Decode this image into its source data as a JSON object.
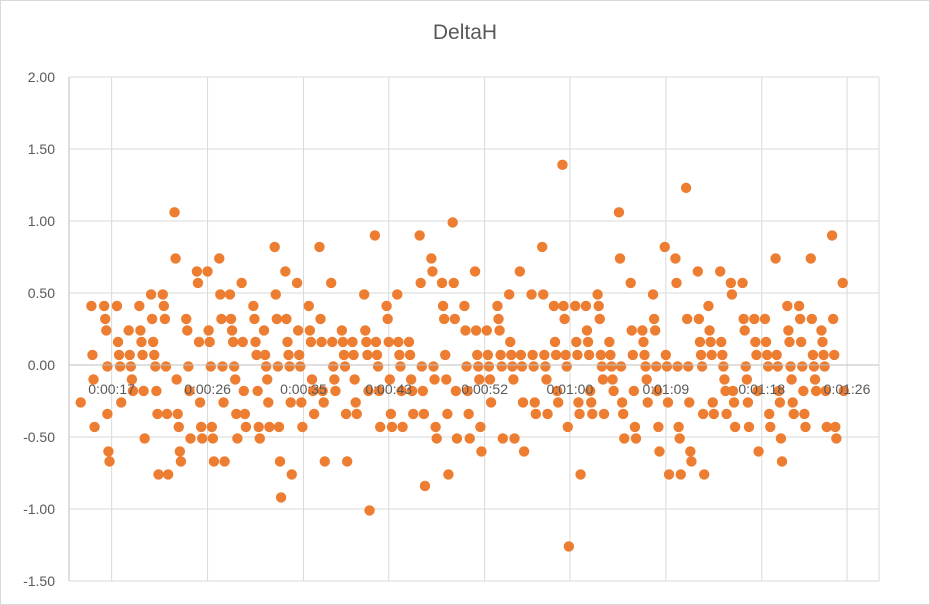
{
  "chart_data": {
    "type": "scatter",
    "title": "DeltaH",
    "xlabel": "",
    "ylabel": "",
    "xlim": [
      13,
      89
    ],
    "ylim": [
      -1.5,
      2.0
    ],
    "y_ticks": [
      "2.00",
      "1.50",
      "1.00",
      "0.50",
      "0.00",
      "-0.50",
      "-1.00",
      "-1.50"
    ],
    "x_ticks": [
      "0:00:17",
      "0:00:26",
      "0:00:35",
      "0:00:43",
      "0:00:52",
      "0:01:00",
      "0:01:09",
      "0:01:18",
      "0:01:26"
    ],
    "x_tick_values": [
      17,
      26,
      35,
      43,
      52,
      60,
      69,
      78,
      86
    ],
    "grid": true,
    "legend": "none",
    "marker_color": "#ED7D31",
    "points": [
      [
        14.1,
        -0.26
      ],
      [
        15.1,
        0.41
      ],
      [
        15.2,
        0.07
      ],
      [
        15.3,
        -0.1
      ],
      [
        15.4,
        -0.43
      ],
      [
        16.3,
        0.41
      ],
      [
        16.4,
        0.32
      ],
      [
        16.5,
        0.24
      ],
      [
        16.6,
        -0.34
      ],
      [
        16.7,
        -0.6
      ],
      [
        16.8,
        -0.67
      ],
      [
        16.6,
        -0.01
      ],
      [
        17.5,
        0.41
      ],
      [
        17.6,
        0.16
      ],
      [
        17.7,
        0.07
      ],
      [
        17.8,
        -0.01
      ],
      [
        17.9,
        -0.26
      ],
      [
        18.6,
        0.24
      ],
      [
        18.7,
        0.07
      ],
      [
        18.8,
        -0.01
      ],
      [
        18.9,
        -0.1
      ],
      [
        19.0,
        -0.18
      ],
      [
        19.6,
        0.41
      ],
      [
        19.7,
        0.24
      ],
      [
        19.8,
        0.16
      ],
      [
        19.9,
        0.07
      ],
      [
        20.0,
        -0.18
      ],
      [
        20.1,
        -0.51
      ],
      [
        20.7,
        0.49
      ],
      [
        20.8,
        0.32
      ],
      [
        20.9,
        0.16
      ],
      [
        21.0,
        0.07
      ],
      [
        21.1,
        -0.01
      ],
      [
        21.2,
        -0.18
      ],
      [
        21.3,
        -0.34
      ],
      [
        21.4,
        -0.76
      ],
      [
        21.8,
        0.49
      ],
      [
        21.9,
        0.41
      ],
      [
        22.0,
        0.32
      ],
      [
        22.1,
        -0.01
      ],
      [
        22.2,
        -0.34
      ],
      [
        22.3,
        -0.76
      ],
      [
        22.9,
        1.06
      ],
      [
        23.0,
        0.74
      ],
      [
        23.1,
        -0.1
      ],
      [
        23.2,
        -0.34
      ],
      [
        23.3,
        -0.43
      ],
      [
        23.4,
        -0.6
      ],
      [
        23.5,
        -0.67
      ],
      [
        24.0,
        0.32
      ],
      [
        24.1,
        0.24
      ],
      [
        24.2,
        -0.01
      ],
      [
        24.3,
        -0.18
      ],
      [
        24.4,
        -0.51
      ],
      [
        25.0,
        0.65
      ],
      [
        25.1,
        0.57
      ],
      [
        25.2,
        0.16
      ],
      [
        25.3,
        -0.26
      ],
      [
        25.4,
        -0.43
      ],
      [
        25.5,
        -0.51
      ],
      [
        26.0,
        0.65
      ],
      [
        26.1,
        0.24
      ],
      [
        26.2,
        0.16
      ],
      [
        26.3,
        -0.01
      ],
      [
        26.4,
        -0.43
      ],
      [
        26.5,
        -0.51
      ],
      [
        26.6,
        -0.67
      ],
      [
        27.1,
        0.74
      ],
      [
        27.2,
        0.49
      ],
      [
        27.3,
        0.32
      ],
      [
        27.4,
        -0.01
      ],
      [
        27.5,
        -0.26
      ],
      [
        27.6,
        -0.67
      ],
      [
        28.1,
        0.49
      ],
      [
        28.2,
        0.32
      ],
      [
        28.3,
        0.24
      ],
      [
        28.4,
        0.16
      ],
      [
        28.5,
        -0.01
      ],
      [
        28.6,
        -0.1
      ],
      [
        28.7,
        -0.34
      ],
      [
        28.8,
        -0.51
      ],
      [
        29.2,
        0.57
      ],
      [
        29.3,
        0.16
      ],
      [
        29.4,
        -0.18
      ],
      [
        29.5,
        -0.34
      ],
      [
        29.6,
        -0.43
      ],
      [
        30.3,
        0.41
      ],
      [
        30.4,
        0.32
      ],
      [
        30.5,
        0.16
      ],
      [
        30.6,
        0.07
      ],
      [
        30.7,
        -0.18
      ],
      [
        30.8,
        -0.43
      ],
      [
        30.9,
        -0.51
      ],
      [
        31.3,
        0.24
      ],
      [
        31.4,
        0.07
      ],
      [
        31.5,
        -0.01
      ],
      [
        31.6,
        -0.1
      ],
      [
        31.7,
        -0.26
      ],
      [
        31.8,
        -0.43
      ],
      [
        32.3,
        0.82
      ],
      [
        32.4,
        0.49
      ],
      [
        32.5,
        0.32
      ],
      [
        32.6,
        -0.01
      ],
      [
        32.7,
        -0.43
      ],
      [
        32.8,
        -0.67
      ],
      [
        32.9,
        -0.92
      ],
      [
        33.3,
        0.65
      ],
      [
        33.4,
        0.32
      ],
      [
        33.5,
        0.16
      ],
      [
        33.6,
        0.07
      ],
      [
        33.7,
        -0.01
      ],
      [
        33.8,
        -0.26
      ],
      [
        33.9,
        -0.76
      ],
      [
        34.4,
        0.57
      ],
      [
        34.5,
        0.24
      ],
      [
        34.6,
        0.07
      ],
      [
        34.7,
        -0.01
      ],
      [
        34.8,
        -0.26
      ],
      [
        34.9,
        -0.43
      ],
      [
        35.5,
        0.41
      ],
      [
        35.6,
        0.24
      ],
      [
        35.7,
        0.16
      ],
      [
        35.8,
        -0.1
      ],
      [
        35.9,
        -0.18
      ],
      [
        36.0,
        -0.34
      ],
      [
        36.5,
        0.82
      ],
      [
        36.6,
        0.32
      ],
      [
        36.7,
        0.16
      ],
      [
        36.8,
        -0.18
      ],
      [
        36.9,
        -0.26
      ],
      [
        37.0,
        -0.67
      ],
      [
        37.6,
        0.57
      ],
      [
        37.7,
        0.16
      ],
      [
        37.8,
        -0.01
      ],
      [
        37.9,
        -0.1
      ],
      [
        38.0,
        -0.18
      ],
      [
        38.6,
        0.24
      ],
      [
        38.7,
        0.16
      ],
      [
        38.8,
        0.07
      ],
      [
        38.9,
        -0.01
      ],
      [
        39.0,
        -0.34
      ],
      [
        39.1,
        -0.67
      ],
      [
        39.6,
        0.16
      ],
      [
        39.7,
        0.07
      ],
      [
        39.8,
        -0.1
      ],
      [
        39.9,
        -0.26
      ],
      [
        40.0,
        -0.34
      ],
      [
        40.7,
        0.49
      ],
      [
        40.8,
        0.24
      ],
      [
        40.9,
        0.16
      ],
      [
        41.0,
        0.07
      ],
      [
        41.1,
        -0.18
      ],
      [
        41.2,
        -1.01
      ],
      [
        41.7,
        0.9
      ],
      [
        41.8,
        0.16
      ],
      [
        41.9,
        0.07
      ],
      [
        42.0,
        -0.01
      ],
      [
        42.1,
        -0.18
      ],
      [
        42.2,
        -0.43
      ],
      [
        42.8,
        0.41
      ],
      [
        42.9,
        0.32
      ],
      [
        43.0,
        0.16
      ],
      [
        43.1,
        -0.1
      ],
      [
        43.2,
        -0.34
      ],
      [
        43.3,
        -0.43
      ],
      [
        43.8,
        0.49
      ],
      [
        43.9,
        0.16
      ],
      [
        44.0,
        0.07
      ],
      [
        44.1,
        -0.01
      ],
      [
        44.2,
        -0.18
      ],
      [
        44.3,
        -0.43
      ],
      [
        44.9,
        0.16
      ],
      [
        45.0,
        0.07
      ],
      [
        45.1,
        -0.1
      ],
      [
        45.2,
        -0.18
      ],
      [
        45.3,
        -0.34
      ],
      [
        45.9,
        0.9
      ],
      [
        46.0,
        0.57
      ],
      [
        46.1,
        -0.01
      ],
      [
        46.2,
        -0.18
      ],
      [
        46.3,
        -0.34
      ],
      [
        46.4,
        -0.84
      ],
      [
        47.0,
        0.74
      ],
      [
        47.1,
        0.65
      ],
      [
        47.2,
        -0.01
      ],
      [
        47.3,
        -0.1
      ],
      [
        47.4,
        -0.43
      ],
      [
        47.5,
        -0.51
      ],
      [
        48.0,
        0.57
      ],
      [
        48.1,
        0.41
      ],
      [
        48.2,
        0.32
      ],
      [
        48.3,
        0.07
      ],
      [
        48.4,
        -0.1
      ],
      [
        48.5,
        -0.34
      ],
      [
        48.6,
        -0.76
      ],
      [
        49.0,
        0.99
      ],
      [
        49.1,
        0.57
      ],
      [
        49.2,
        0.32
      ],
      [
        49.3,
        -0.18
      ],
      [
        49.4,
        -0.51
      ],
      [
        50.1,
        0.41
      ],
      [
        50.2,
        0.24
      ],
      [
        50.3,
        -0.01
      ],
      [
        50.4,
        -0.18
      ],
      [
        50.5,
        -0.34
      ],
      [
        50.6,
        -0.51
      ],
      [
        51.1,
        0.65
      ],
      [
        51.2,
        0.24
      ],
      [
        51.3,
        0.07
      ],
      [
        51.4,
        -0.01
      ],
      [
        51.5,
        -0.1
      ],
      [
        51.6,
        -0.43
      ],
      [
        51.7,
        -0.6
      ],
      [
        52.2,
        0.24
      ],
      [
        52.3,
        0.07
      ],
      [
        52.4,
        -0.01
      ],
      [
        52.5,
        -0.1
      ],
      [
        52.6,
        -0.26
      ],
      [
        53.2,
        0.41
      ],
      [
        53.3,
        0.32
      ],
      [
        53.4,
        0.24
      ],
      [
        53.5,
        0.07
      ],
      [
        53.6,
        -0.01
      ],
      [
        53.7,
        -0.51
      ],
      [
        54.3,
        0.49
      ],
      [
        54.4,
        0.16
      ],
      [
        54.5,
        0.07
      ],
      [
        54.6,
        -0.01
      ],
      [
        54.7,
        -0.1
      ],
      [
        54.8,
        -0.51
      ],
      [
        55.3,
        0.65
      ],
      [
        55.4,
        0.07
      ],
      [
        55.5,
        -0.01
      ],
      [
        55.6,
        -0.26
      ],
      [
        55.7,
        -0.6
      ],
      [
        56.4,
        0.49
      ],
      [
        56.5,
        0.07
      ],
      [
        56.6,
        -0.01
      ],
      [
        56.7,
        -0.26
      ],
      [
        56.8,
        -0.34
      ],
      [
        57.4,
        0.82
      ],
      [
        57.5,
        0.49
      ],
      [
        57.6,
        0.07
      ],
      [
        57.7,
        -0.01
      ],
      [
        57.8,
        -0.1
      ],
      [
        57.9,
        -0.34
      ],
      [
        58.5,
        0.41
      ],
      [
        58.6,
        0.16
      ],
      [
        58.7,
        0.07
      ],
      [
        58.8,
        -0.18
      ],
      [
        58.9,
        -0.26
      ],
      [
        59.3,
        1.39
      ],
      [
        59.4,
        0.41
      ],
      [
        59.5,
        0.32
      ],
      [
        59.6,
        0.07
      ],
      [
        59.7,
        -0.01
      ],
      [
        59.8,
        -0.43
      ],
      [
        59.9,
        -1.26
      ],
      [
        60.5,
        0.41
      ],
      [
        60.6,
        0.16
      ],
      [
        60.7,
        0.07
      ],
      [
        60.8,
        -0.26
      ],
      [
        60.9,
        -0.34
      ],
      [
        61.0,
        -0.76
      ],
      [
        61.5,
        0.41
      ],
      [
        61.6,
        0.24
      ],
      [
        61.7,
        0.16
      ],
      [
        61.8,
        0.07
      ],
      [
        61.9,
        -0.18
      ],
      [
        62.0,
        -0.26
      ],
      [
        62.1,
        -0.34
      ],
      [
        62.6,
        0.49
      ],
      [
        62.7,
        0.41
      ],
      [
        62.8,
        0.32
      ],
      [
        62.9,
        0.07
      ],
      [
        63.0,
        -0.01
      ],
      [
        63.1,
        -0.1
      ],
      [
        63.2,
        -0.34
      ],
      [
        63.7,
        0.16
      ],
      [
        63.8,
        0.07
      ],
      [
        63.9,
        -0.01
      ],
      [
        64.0,
        -0.1
      ],
      [
        64.1,
        -0.18
      ],
      [
        64.6,
        1.06
      ],
      [
        64.7,
        0.74
      ],
      [
        64.8,
        -0.01
      ],
      [
        64.9,
        -0.26
      ],
      [
        65.0,
        -0.34
      ],
      [
        65.1,
        -0.51
      ],
      [
        65.7,
        0.57
      ],
      [
        65.8,
        0.24
      ],
      [
        65.9,
        0.07
      ],
      [
        66.0,
        -0.18
      ],
      [
        66.1,
        -0.43
      ],
      [
        66.2,
        -0.51
      ],
      [
        66.8,
        0.24
      ],
      [
        66.9,
        0.16
      ],
      [
        67.0,
        0.07
      ],
      [
        67.1,
        -0.01
      ],
      [
        67.2,
        -0.1
      ],
      [
        67.3,
        -0.26
      ],
      [
        67.8,
        0.49
      ],
      [
        67.9,
        0.32
      ],
      [
        68.0,
        0.24
      ],
      [
        68.1,
        -0.01
      ],
      [
        68.2,
        -0.18
      ],
      [
        68.3,
        -0.43
      ],
      [
        68.4,
        -0.6
      ],
      [
        68.9,
        0.82
      ],
      [
        69.0,
        0.07
      ],
      [
        69.1,
        -0.01
      ],
      [
        69.2,
        -0.26
      ],
      [
        69.3,
        -0.76
      ],
      [
        69.9,
        0.74
      ],
      [
        70.0,
        0.57
      ],
      [
        70.1,
        -0.01
      ],
      [
        70.2,
        -0.43
      ],
      [
        70.3,
        -0.51
      ],
      [
        70.4,
        -0.76
      ],
      [
        70.9,
        1.23
      ],
      [
        71.0,
        0.32
      ],
      [
        71.1,
        -0.01
      ],
      [
        71.2,
        -0.26
      ],
      [
        71.3,
        -0.6
      ],
      [
        71.4,
        -0.67
      ],
      [
        72.0,
        0.65
      ],
      [
        72.1,
        0.32
      ],
      [
        72.2,
        0.16
      ],
      [
        72.3,
        0.07
      ],
      [
        72.4,
        -0.01
      ],
      [
        72.5,
        -0.34
      ],
      [
        72.6,
        -0.76
      ],
      [
        73.0,
        0.41
      ],
      [
        73.1,
        0.24
      ],
      [
        73.2,
        0.16
      ],
      [
        73.3,
        0.07
      ],
      [
        73.4,
        -0.26
      ],
      [
        73.5,
        -0.34
      ],
      [
        74.1,
        0.65
      ],
      [
        74.2,
        0.16
      ],
      [
        74.3,
        0.07
      ],
      [
        74.4,
        -0.01
      ],
      [
        74.5,
        -0.1
      ],
      [
        74.6,
        -0.18
      ],
      [
        74.7,
        -0.34
      ],
      [
        75.1,
        0.57
      ],
      [
        75.2,
        0.49
      ],
      [
        75.3,
        -0.18
      ],
      [
        75.4,
        -0.26
      ],
      [
        75.5,
        -0.43
      ],
      [
        76.2,
        0.57
      ],
      [
        76.3,
        0.32
      ],
      [
        76.4,
        0.24
      ],
      [
        76.5,
        -0.01
      ],
      [
        76.6,
        -0.1
      ],
      [
        76.7,
        -0.26
      ],
      [
        76.8,
        -0.43
      ],
      [
        77.3,
        0.32
      ],
      [
        77.4,
        0.16
      ],
      [
        77.5,
        0.07
      ],
      [
        77.6,
        -0.18
      ],
      [
        77.7,
        -0.6
      ],
      [
        78.3,
        0.32
      ],
      [
        78.4,
        0.16
      ],
      [
        78.5,
        0.07
      ],
      [
        78.6,
        -0.01
      ],
      [
        78.7,
        -0.34
      ],
      [
        78.8,
        -0.43
      ],
      [
        79.3,
        0.74
      ],
      [
        79.4,
        0.07
      ],
      [
        79.5,
        -0.01
      ],
      [
        79.6,
        -0.18
      ],
      [
        79.7,
        -0.26
      ],
      [
        79.8,
        -0.51
      ],
      [
        79.9,
        -0.67
      ],
      [
        80.4,
        0.41
      ],
      [
        80.5,
        0.24
      ],
      [
        80.6,
        0.16
      ],
      [
        80.7,
        -0.01
      ],
      [
        80.8,
        -0.1
      ],
      [
        80.9,
        -0.26
      ],
      [
        81.0,
        -0.34
      ],
      [
        81.5,
        0.41
      ],
      [
        81.6,
        0.32
      ],
      [
        81.7,
        0.16
      ],
      [
        81.8,
        -0.01
      ],
      [
        81.9,
        -0.18
      ],
      [
        82.0,
        -0.34
      ],
      [
        82.1,
        -0.43
      ],
      [
        82.6,
        0.74
      ],
      [
        82.7,
        0.32
      ],
      [
        82.8,
        0.07
      ],
      [
        82.9,
        -0.01
      ],
      [
        83.0,
        -0.1
      ],
      [
        83.1,
        -0.18
      ],
      [
        83.6,
        0.24
      ],
      [
        83.7,
        0.16
      ],
      [
        83.8,
        0.07
      ],
      [
        83.9,
        -0.01
      ],
      [
        84.0,
        -0.18
      ],
      [
        84.1,
        -0.43
      ],
      [
        84.6,
        0.9
      ],
      [
        84.7,
        0.32
      ],
      [
        84.8,
        0.07
      ],
      [
        84.9,
        -0.43
      ],
      [
        85.0,
        -0.51
      ],
      [
        85.6,
        0.57
      ],
      [
        85.7,
        -0.18
      ]
    ]
  }
}
